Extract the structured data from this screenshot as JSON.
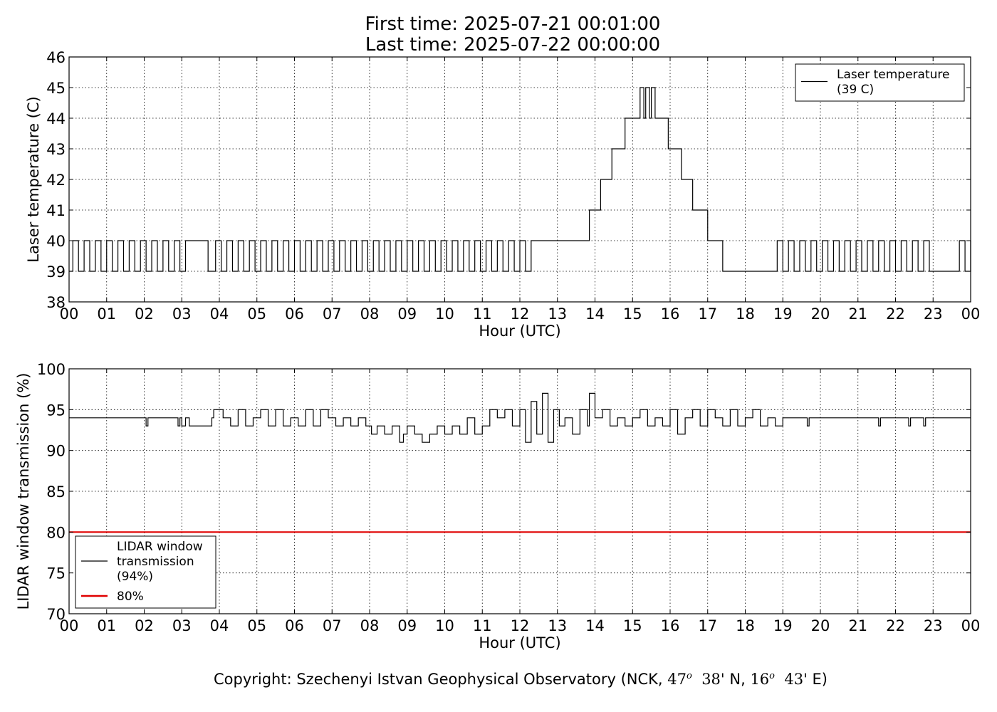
{
  "header": {
    "first_time": "First time: 2025-07-21 00:01:00",
    "last_time": "Last time: 2025-07-22 00:00:00"
  },
  "footer": {
    "prefix": "Copyright: Szechenyi Istvan Geophysical Observatory (NCK, ",
    "lat_deg": "47",
    "deg_mark": "o",
    "lat_min": "38'",
    "lat_dir": " N, ",
    "lon_deg": "16",
    "lon_min": "43'",
    "lon_dir": " E)"
  },
  "chart_data": [
    {
      "type": "line",
      "xlabel": "Hour (UTC)",
      "ylabel": "Laser temperature (C)",
      "xlim": [
        0,
        24
      ],
      "ylim": [
        38,
        46
      ],
      "xticks": [
        0,
        1,
        2,
        3,
        4,
        5,
        6,
        7,
        8,
        9,
        10,
        11,
        12,
        13,
        14,
        15,
        16,
        17,
        18,
        19,
        20,
        21,
        22,
        23,
        24
      ],
      "xtick_labels": [
        "00",
        "01",
        "02",
        "03",
        "04",
        "05",
        "06",
        "07",
        "08",
        "09",
        "10",
        "11",
        "12",
        "13",
        "14",
        "15",
        "16",
        "17",
        "18",
        "19",
        "20",
        "21",
        "22",
        "23",
        "00"
      ],
      "yticks": [
        38,
        39,
        40,
        41,
        42,
        43,
        44,
        45,
        46
      ],
      "grid": true,
      "legend_position": "top-right",
      "series": [
        {
          "name": "Laser temperature",
          "legend_label": "Laser temperature\n(39 C)",
          "color": "#000000",
          "x": [
            0.0,
            0.1,
            0.25,
            0.4,
            0.55,
            0.7,
            0.85,
            1.0,
            1.15,
            1.3,
            1.45,
            1.6,
            1.75,
            1.9,
            2.05,
            2.2,
            2.35,
            2.5,
            2.65,
            2.8,
            2.95,
            3.1,
            3.3,
            3.5,
            3.7,
            3.9,
            4.05,
            4.2,
            4.35,
            4.5,
            4.65,
            4.8,
            4.95,
            5.1,
            5.25,
            5.4,
            5.55,
            5.7,
            5.85,
            6.0,
            6.15,
            6.3,
            6.45,
            6.6,
            6.75,
            6.9,
            7.05,
            7.2,
            7.35,
            7.5,
            7.65,
            7.8,
            7.95,
            8.1,
            8.25,
            8.4,
            8.55,
            8.7,
            8.85,
            9.0,
            9.15,
            9.3,
            9.45,
            9.6,
            9.75,
            9.9,
            10.05,
            10.2,
            10.35,
            10.5,
            10.65,
            10.8,
            10.95,
            11.1,
            11.25,
            11.4,
            11.55,
            11.7,
            11.85,
            12.0,
            12.15,
            12.3,
            12.5,
            12.8,
            13.1,
            13.4,
            13.8,
            13.85,
            14.15,
            14.45,
            14.8,
            15.15,
            15.2,
            15.3,
            15.35,
            15.45,
            15.5,
            15.6,
            15.65,
            15.95,
            16.3,
            16.6,
            17.0,
            17.4,
            17.7,
            17.95,
            18.3,
            18.7,
            18.85,
            19.0,
            19.15,
            19.3,
            19.45,
            19.6,
            19.75,
            19.9,
            20.05,
            20.2,
            20.35,
            20.5,
            20.65,
            20.8,
            20.95,
            21.1,
            21.25,
            21.4,
            21.55,
            21.7,
            21.85,
            22.0,
            22.15,
            22.3,
            22.45,
            22.6,
            22.75,
            22.9,
            23.1,
            23.3,
            23.5,
            23.7,
            23.85,
            24.0
          ],
          "y": [
            39,
            40,
            39,
            40,
            39,
            40,
            39,
            40,
            39,
            40,
            39,
            40,
            39,
            40,
            39,
            40,
            39,
            40,
            39,
            40,
            39,
            40,
            40,
            40,
            39,
            40,
            39,
            40,
            39,
            40,
            39,
            40,
            39,
            40,
            39,
            40,
            39,
            40,
            39,
            40,
            39,
            40,
            39,
            40,
            39,
            40,
            39,
            40,
            39,
            40,
            39,
            40,
            39,
            40,
            39,
            40,
            39,
            40,
            39,
            40,
            39,
            40,
            39,
            40,
            39,
            40,
            39,
            40,
            39,
            40,
            39,
            40,
            39,
            40,
            39,
            40,
            39,
            40,
            39,
            40,
            39,
            40,
            40,
            40,
            40,
            40,
            40,
            41,
            42,
            43,
            44,
            44,
            45,
            44,
            45,
            44,
            45,
            44,
            44,
            43,
            42,
            41,
            40,
            39,
            39,
            39,
            39,
            39,
            40,
            39,
            40,
            39,
            40,
            39,
            40,
            39,
            40,
            39,
            40,
            39,
            40,
            39,
            40,
            39,
            40,
            39,
            40,
            39,
            40,
            39,
            40,
            39,
            40,
            39,
            40,
            39,
            39,
            39,
            39,
            40,
            39,
            40
          ]
        }
      ]
    },
    {
      "type": "line",
      "xlabel": "Hour (UTC)",
      "ylabel": "LIDAR window transmission (%)",
      "xlim": [
        0,
        24
      ],
      "ylim": [
        70,
        100
      ],
      "xticks": [
        0,
        1,
        2,
        3,
        4,
        5,
        6,
        7,
        8,
        9,
        10,
        11,
        12,
        13,
        14,
        15,
        16,
        17,
        18,
        19,
        20,
        21,
        22,
        23,
        24
      ],
      "xtick_labels": [
        "00",
        "01",
        "02",
        "03",
        "04",
        "05",
        "06",
        "07",
        "08",
        "09",
        "10",
        "11",
        "12",
        "13",
        "14",
        "15",
        "16",
        "17",
        "18",
        "19",
        "20",
        "21",
        "22",
        "23",
        "00"
      ],
      "yticks": [
        70,
        75,
        80,
        85,
        90,
        95,
        100
      ],
      "grid": true,
      "legend_position": "bottom-left",
      "series": [
        {
          "name": "LIDAR window transmission",
          "legend_label": "LIDAR window\ntransmission\n(94%)",
          "color": "#000000",
          "x": [
            0.0,
            1.0,
            2.0,
            2.05,
            2.1,
            2.9,
            2.95,
            3.0,
            3.1,
            3.2,
            3.8,
            3.85,
            4.1,
            4.3,
            4.5,
            4.7,
            4.9,
            5.1,
            5.3,
            5.5,
            5.7,
            5.9,
            6.1,
            6.3,
            6.5,
            6.7,
            6.9,
            7.1,
            7.3,
            7.5,
            7.7,
            7.9,
            8.05,
            8.2,
            8.4,
            8.6,
            8.8,
            8.9,
            9.0,
            9.2,
            9.4,
            9.6,
            9.8,
            10.0,
            10.2,
            10.4,
            10.6,
            10.8,
            11.0,
            11.2,
            11.4,
            11.6,
            11.8,
            12.0,
            12.15,
            12.3,
            12.45,
            12.6,
            12.75,
            12.9,
            13.05,
            13.2,
            13.4,
            13.6,
            13.8,
            13.85,
            14.0,
            14.2,
            14.4,
            14.6,
            14.8,
            15.0,
            15.2,
            15.4,
            15.6,
            15.8,
            16.0,
            16.2,
            16.4,
            16.6,
            16.8,
            17.0,
            17.2,
            17.4,
            17.6,
            17.8,
            18.0,
            18.2,
            18.4,
            18.6,
            18.8,
            19.0,
            19.6,
            19.65,
            19.7,
            21.5,
            21.55,
            21.6,
            22.3,
            22.35,
            22.4,
            22.7,
            22.75,
            22.8,
            24.0
          ],
          "y": [
            94,
            94,
            94,
            93,
            94,
            93,
            94,
            93,
            94,
            93,
            94,
            95,
            94,
            93,
            95,
            93,
            94,
            95,
            93,
            95,
            93,
            94,
            93,
            95,
            93,
            95,
            94,
            93,
            94,
            93,
            94,
            93,
            92,
            93,
            92,
            93,
            91,
            92,
            93,
            92,
            91,
            92,
            93,
            92,
            93,
            92,
            94,
            92,
            93,
            95,
            94,
            95,
            93,
            95,
            91,
            96,
            92,
            97,
            91,
            95,
            93,
            94,
            92,
            95,
            93,
            97,
            94,
            95,
            93,
            94,
            93,
            94,
            95,
            93,
            94,
            93,
            95,
            92,
            94,
            95,
            93,
            95,
            94,
            93,
            95,
            93,
            94,
            95,
            93,
            94,
            93,
            94,
            94,
            93,
            94,
            94,
            93,
            94,
            94,
            93,
            94,
            94,
            93,
            94,
            94
          ]
        },
        {
          "name": "80%",
          "legend_label": "80%",
          "color": "#e00000",
          "x": [
            0,
            24
          ],
          "y": [
            80,
            80
          ]
        }
      ]
    }
  ]
}
